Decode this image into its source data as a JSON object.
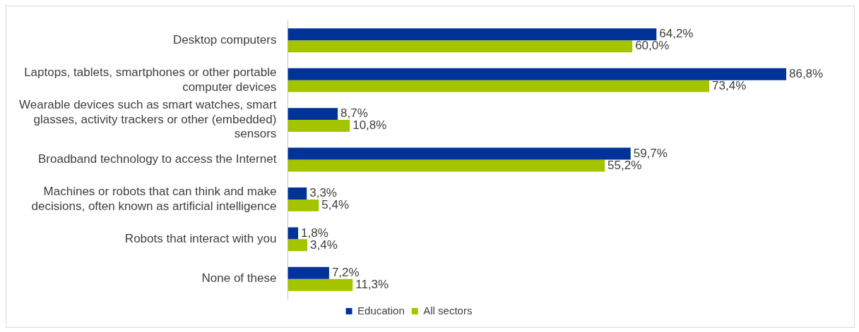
{
  "chart_data": {
    "type": "bar",
    "orientation": "horizontal",
    "categories": [
      "Desktop computers",
      "Laptops, tablets, smartphones or other portable computer devices",
      "Wearable devices such as smart watches, smart glasses, activity trackers or other (embedded) sensors",
      "Broadband technology to access the Internet",
      "Machines or robots that can think and make decisions, often known as artificial intelligence",
      "Robots that interact with you",
      "None of these"
    ],
    "series": [
      {
        "name": "Education",
        "color": "#003399",
        "values": [
          64.2,
          86.8,
          8.7,
          59.7,
          3.3,
          1.8,
          7.2
        ],
        "value_labels": [
          "64,2%",
          "86,8%",
          "8,7%",
          "59,7%",
          "3,3%",
          "1,8%",
          "7,2%"
        ]
      },
      {
        "name": "All sectors",
        "color": "#a5c400",
        "values": [
          60.0,
          73.4,
          10.8,
          55.2,
          5.4,
          3.4,
          11.3
        ],
        "value_labels": [
          "60,0%",
          "73,4%",
          "10,8%",
          "55,2%",
          "5,4%",
          "3,4%",
          "11,3%"
        ]
      }
    ],
    "tick_labels": "y",
    "legend": "bottom"
  }
}
